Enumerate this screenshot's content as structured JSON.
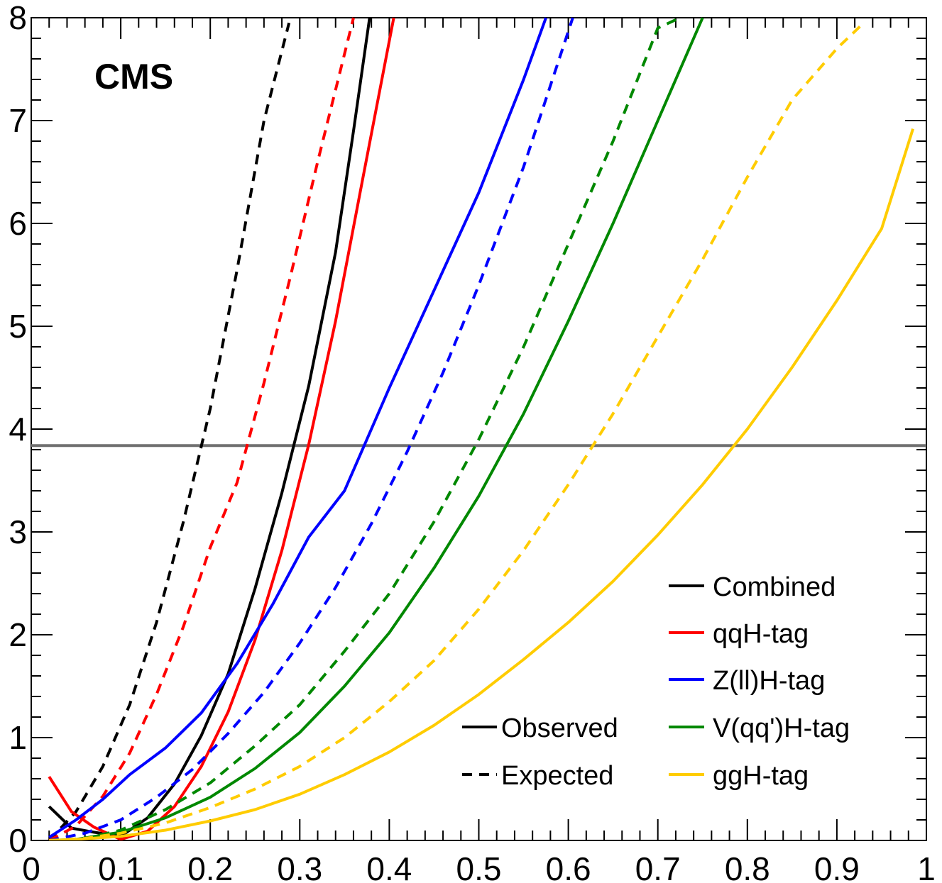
{
  "chart_data": {
    "type": "line",
    "experiment_label": "CMS",
    "xlim": [
      0,
      1
    ],
    "ylim": [
      0,
      8
    ],
    "x_ticks": [
      0,
      0.1,
      0.2,
      0.3,
      0.4,
      0.5,
      0.6,
      0.7,
      0.8,
      0.9,
      1
    ],
    "x_tick_labels": [
      "0",
      "0.1",
      "0.2",
      "0.3",
      "0.4",
      "0.5",
      "0.6",
      "0.7",
      "0.8",
      "0.9",
      "1"
    ],
    "y_ticks": [
      0,
      1,
      2,
      3,
      4,
      5,
      6,
      7,
      8
    ],
    "y_tick_labels": [
      "0",
      "1",
      "2",
      "3",
      "4",
      "5",
      "6",
      "7",
      "8"
    ],
    "reference_line": {
      "y": 3.84,
      "color": "#707070"
    },
    "legend_styles": [
      {
        "name": "Observed",
        "dash": false
      },
      {
        "name": "Expected",
        "dash": true
      }
    ],
    "series": [
      {
        "name": "Combined",
        "color": "#000000",
        "dash": false,
        "x": [
          0.02,
          0.045,
          0.07,
          0.1,
          0.13,
          0.16,
          0.19,
          0.22,
          0.25,
          0.28,
          0.31,
          0.34,
          0.36,
          0.378
        ],
        "y": [
          0.33,
          0.12,
          0.08,
          0.04,
          0.22,
          0.55,
          1.02,
          1.62,
          2.45,
          3.38,
          4.42,
          5.72,
          6.9,
          8.0
        ]
      },
      {
        "name": "Combined",
        "color": "#000000",
        "dash": true,
        "x": [
          0.02,
          0.05,
          0.08,
          0.11,
          0.14,
          0.17,
          0.2,
          0.23,
          0.26,
          0.288
        ],
        "y": [
          0.0,
          0.28,
          0.72,
          1.32,
          2.12,
          3.1,
          4.2,
          5.55,
          7.0,
          7.95
        ]
      },
      {
        "name": "qqH-tag",
        "color": "#ff0000",
        "dash": false,
        "x": [
          0.02,
          0.045,
          0.07,
          0.1,
          0.13,
          0.16,
          0.19,
          0.22,
          0.25,
          0.28,
          0.31,
          0.34,
          0.37,
          0.405
        ],
        "y": [
          0.62,
          0.28,
          0.13,
          0.01,
          0.09,
          0.33,
          0.72,
          1.25,
          1.95,
          2.82,
          3.85,
          5.05,
          6.42,
          8.0
        ]
      },
      {
        "name": "qqH-tag",
        "color": "#ff0000",
        "dash": true,
        "x": [
          0.02,
          0.05,
          0.08,
          0.11,
          0.14,
          0.17,
          0.2,
          0.23,
          0.26,
          0.29,
          0.32,
          0.36
        ],
        "y": [
          0.0,
          0.14,
          0.43,
          0.85,
          1.42,
          2.08,
          2.85,
          3.48,
          4.45,
          5.5,
          6.6,
          8.0
        ]
      },
      {
        "name": "Z(ll)H-tag",
        "color": "#0000ff",
        "dash": false,
        "x": [
          0.02,
          0.05,
          0.08,
          0.11,
          0.15,
          0.19,
          0.23,
          0.27,
          0.31,
          0.35,
          0.4,
          0.45,
          0.5,
          0.55,
          0.575
        ],
        "y": [
          0.03,
          0.2,
          0.4,
          0.64,
          0.9,
          1.24,
          1.72,
          2.3,
          2.95,
          3.4,
          4.4,
          5.35,
          6.3,
          7.4,
          8.0
        ]
      },
      {
        "name": "Z(ll)H-tag",
        "color": "#0000ff",
        "dash": true,
        "x": [
          0.02,
          0.06,
          0.1,
          0.14,
          0.18,
          0.22,
          0.26,
          0.3,
          0.34,
          0.38,
          0.42,
          0.46,
          0.5,
          0.55,
          0.605
        ],
        "y": [
          0.0,
          0.07,
          0.2,
          0.42,
          0.69,
          1.04,
          1.44,
          1.92,
          2.46,
          3.08,
          3.78,
          4.55,
          5.4,
          6.55,
          8.0
        ]
      },
      {
        "name": "V(qq')H-tag",
        "color": "#008800",
        "dash": false,
        "x": [
          0.02,
          0.05,
          0.1,
          0.15,
          0.2,
          0.25,
          0.3,
          0.35,
          0.4,
          0.45,
          0.5,
          0.55,
          0.6,
          0.65,
          0.7,
          0.75
        ],
        "y": [
          0.0,
          0.01,
          0.08,
          0.22,
          0.42,
          0.7,
          1.05,
          1.5,
          2.02,
          2.65,
          3.35,
          4.15,
          5.05,
          6.0,
          7.0,
          8.0
        ]
      },
      {
        "name": "V(qq')H-tag",
        "color": "#008800",
        "dash": true,
        "x": [
          0.02,
          0.06,
          0.1,
          0.15,
          0.2,
          0.25,
          0.3,
          0.35,
          0.4,
          0.45,
          0.5,
          0.55,
          0.6,
          0.65,
          0.7,
          0.725
        ],
        "y": [
          0.0,
          0.02,
          0.1,
          0.3,
          0.56,
          0.92,
          1.32,
          1.84,
          2.4,
          3.1,
          3.9,
          4.8,
          5.8,
          6.8,
          7.9,
          8.0
        ]
      },
      {
        "name": "ggH-tag",
        "color": "#ffcc00",
        "dash": false,
        "x": [
          0.02,
          0.05,
          0.1,
          0.15,
          0.2,
          0.25,
          0.3,
          0.35,
          0.4,
          0.45,
          0.5,
          0.55,
          0.6,
          0.65,
          0.7,
          0.75,
          0.8,
          0.85,
          0.9,
          0.95,
          0.985
        ],
        "y": [
          0.0,
          0.01,
          0.04,
          0.1,
          0.19,
          0.3,
          0.45,
          0.64,
          0.86,
          1.12,
          1.42,
          1.76,
          2.12,
          2.52,
          2.97,
          3.46,
          4.0,
          4.6,
          5.25,
          5.95,
          6.92
        ]
      },
      {
        "name": "ggH-tag",
        "color": "#ffcc00",
        "dash": true,
        "x": [
          0.02,
          0.06,
          0.1,
          0.15,
          0.2,
          0.25,
          0.3,
          0.35,
          0.4,
          0.45,
          0.5,
          0.55,
          0.6,
          0.65,
          0.7,
          0.75,
          0.8,
          0.85,
          0.9,
          0.93
        ],
        "y": [
          0.0,
          0.02,
          0.07,
          0.17,
          0.32,
          0.5,
          0.72,
          1.0,
          1.35,
          1.75,
          2.25,
          2.82,
          3.46,
          4.15,
          4.9,
          5.65,
          6.45,
          7.2,
          7.7,
          7.95
        ]
      }
    ],
    "legend": [
      {
        "label": "Combined",
        "color": "#000000"
      },
      {
        "label": "qqH-tag",
        "color": "#ff0000"
      },
      {
        "label": "Z(ll)H-tag",
        "color": "#0000ff"
      },
      {
        "label": "V(qq')H-tag",
        "color": "#008800"
      },
      {
        "label": "ggH-tag",
        "color": "#ffcc00"
      }
    ]
  }
}
